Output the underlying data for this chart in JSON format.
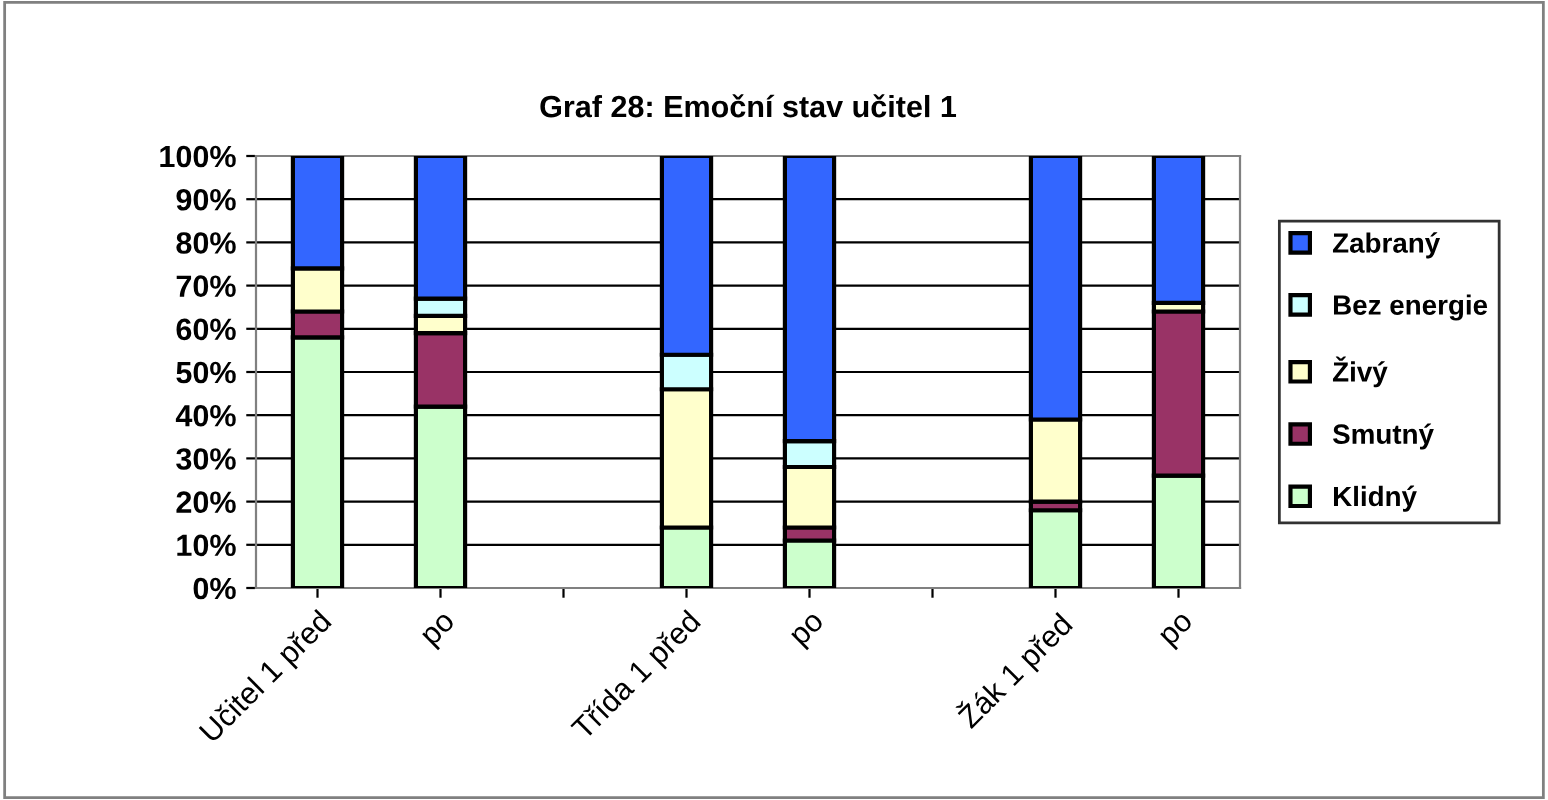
{
  "chart_data": {
    "type": "bar",
    "title": "Graf 28: Emoční stav učitel 1",
    "stacked": true,
    "categories": [
      "Učitel 1 před",
      "po",
      null,
      "Třída 1 před",
      "po",
      null,
      "Žák 1 před",
      "po"
    ],
    "series": [
      {
        "name": "Klidný",
        "color": "#ccffcc",
        "values": [
          58,
          42,
          null,
          14,
          11,
          null,
          18,
          26
        ]
      },
      {
        "name": "Smutný",
        "color": "#993366",
        "values": [
          6,
          17,
          null,
          null,
          3,
          null,
          2,
          38
        ]
      },
      {
        "name": "Živý",
        "color": "#ffffcc",
        "values": [
          10,
          4,
          null,
          32,
          14,
          null,
          19,
          2
        ]
      },
      {
        "name": "Bez energie",
        "color": "#ccffff",
        "values": [
          null,
          4,
          null,
          8,
          6,
          null,
          null,
          null
        ]
      },
      {
        "name": "Zabraný",
        "color": "#3366ff",
        "values": [
          26,
          33,
          null,
          46,
          66,
          null,
          61,
          34
        ]
      }
    ],
    "ylim": [
      0,
      100
    ],
    "yticks": [
      {
        "value": 0,
        "label": "0%"
      },
      {
        "value": 10,
        "label": "10%"
      },
      {
        "value": 20,
        "label": "20%"
      },
      {
        "value": 30,
        "label": "30%"
      },
      {
        "value": 40,
        "label": "40%"
      },
      {
        "value": 50,
        "label": "50%"
      },
      {
        "value": 60,
        "label": "60%"
      },
      {
        "value": 70,
        "label": "70%"
      },
      {
        "value": 80,
        "label": "80%"
      },
      {
        "value": 90,
        "label": "90%"
      },
      {
        "value": 100,
        "label": "100%"
      }
    ],
    "grid": "y",
    "legend": "right"
  }
}
